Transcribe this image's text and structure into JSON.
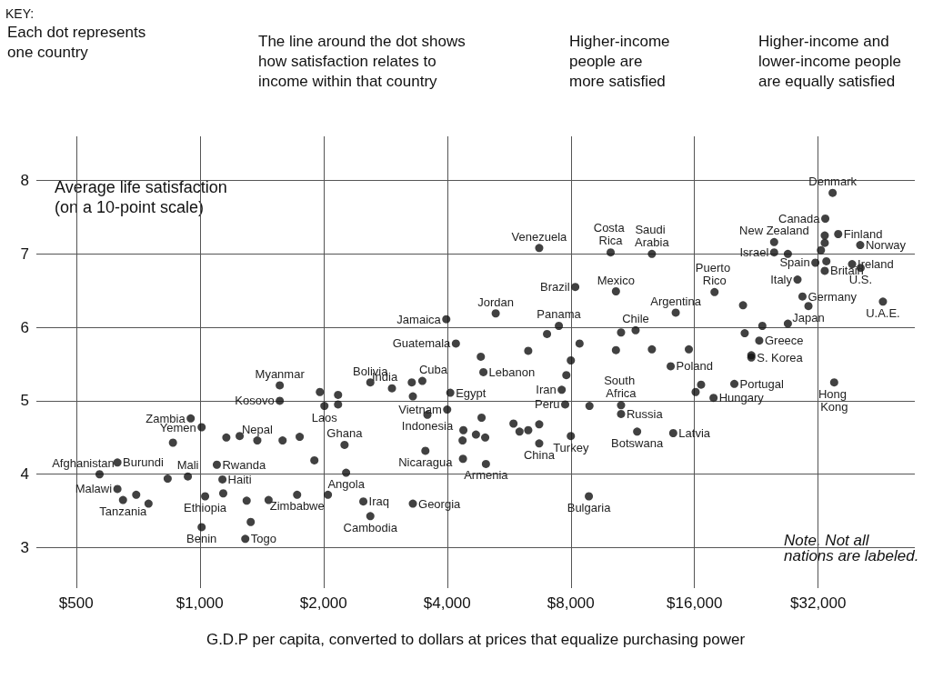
{
  "chart_data": {
    "type": "scatter",
    "ylabel": "Average life satisfaction\n(on a 10-point scale)",
    "xlabel": "G.D.P per capita, converted to dollars at prices that equalize purchasing power",
    "log": "x",
    "xlim": [
      400,
      55000
    ],
    "ylim": [
      2.45,
      8.6
    ],
    "xticks": [
      {
        "value": 500,
        "label": "$500"
      },
      {
        "value": 1000,
        "label": "$1,000"
      },
      {
        "value": 2000,
        "label": "$2,000"
      },
      {
        "value": 4000,
        "label": "$4,000"
      },
      {
        "value": 8000,
        "label": "$8,000"
      },
      {
        "value": 16000,
        "label": "$16,000"
      },
      {
        "value": 32000,
        "label": "$32,000"
      }
    ],
    "yticks": [
      3,
      4,
      5,
      6,
      7,
      8
    ],
    "grid": true,
    "marker": "circle",
    "series": [
      {
        "color": "#111111",
        "x": [
          570,
          630,
          860,
          950,
          1010,
          835,
          935,
          630,
          650,
          700,
          750,
          1030,
          1010,
          1140,
          1135,
          1100,
          1290,
          1330,
          1300,
          1470,
          1725,
          2050,
          1160,
          1250,
          1380,
          1590,
          1750,
          1565,
          1565,
          1900,
          1960,
          2010,
          2170,
          2170,
          2600,
          2935,
          3280,
          3480,
          3300,
          3580,
          4000,
          4070,
          4200,
          3980,
          5250,
          7480,
          7000,
          4830,
          6300,
          4900,
          2250,
          2270,
          3540,
          2500,
          2600,
          3300,
          4380,
          4360,
          4700,
          4950,
          4850,
          4370,
          4970,
          5800,
          6000,
          6300,
          6700,
          7750,
          6700,
          8000,
          7600,
          7800,
          8000,
          8880,
          8850,
          8400,
          10300,
          12600,
          15500,
          14000,
          16600,
          16100,
          17800,
          20000,
          22000,
          35000,
          10600,
          10600,
          11600,
          14200,
          6700,
          10000,
          12600,
          8200,
          10300,
          14400,
          11500,
          10600,
          17900,
          21000,
          25000,
          25000,
          27000,
          33300,
          34700,
          35800,
          33200,
          33200,
          32500,
          40500,
          38700,
          40600,
          46000,
          31500,
          33500,
          33200,
          28500,
          29300,
          30300,
          23000,
          21200,
          23400,
          27000,
          22000
        ],
        "values": [
          4.0,
          4.16,
          4.43,
          4.76,
          4.64,
          3.94,
          3.97,
          3.8,
          3.65,
          3.72,
          3.6,
          3.7,
          3.28,
          3.74,
          3.93,
          4.13,
          3.12,
          3.35,
          3.64,
          3.65,
          3.72,
          3.72,
          4.5,
          4.52,
          4.46,
          4.46,
          4.51,
          5.21,
          5.0,
          4.19,
          5.12,
          4.93,
          5.08,
          4.95,
          5.25,
          5.17,
          5.25,
          5.27,
          5.06,
          4.81,
          4.88,
          5.11,
          5.78,
          6.11,
          6.19,
          6.02,
          5.91,
          5.6,
          5.68,
          5.39,
          4.4,
          4.02,
          4.32,
          3.63,
          3.43,
          3.6,
          4.6,
          4.46,
          4.54,
          4.5,
          4.77,
          4.21,
          4.14,
          4.69,
          4.58,
          4.6,
          4.68,
          4.95,
          4.42,
          4.52,
          5.15,
          5.35,
          5.55,
          4.93,
          3.7,
          5.78,
          5.69,
          5.7,
          5.7,
          5.47,
          5.22,
          5.12,
          5.04,
          5.23,
          5.59,
          5.25,
          4.94,
          4.82,
          4.58,
          4.56,
          7.08,
          7.02,
          7.0,
          6.55,
          6.49,
          6.2,
          5.96,
          5.93,
          6.48,
          6.3,
          7.16,
          7.02,
          7.0,
          7.48,
          7.83,
          7.27,
          7.25,
          7.15,
          7.05,
          7.12,
          6.86,
          6.81,
          6.35,
          6.88,
          6.9,
          6.77,
          6.65,
          6.42,
          6.29,
          5.82,
          5.92,
          6.02,
          6.05,
          5.62
        ]
      }
    ],
    "annotations": [
      "KEY:",
      "Each dot represents\none country",
      "The line around the dot shows\nhow satisfaction relates to\nincome within that country",
      "Higher-income\npeople are\nmore satisfied",
      "Higher-income and\nlower-income people\nare equally satisfied",
      "Note. Not all\nnations are labeled.",
      {
        "text": "Afghanistan",
        "x": 570,
        "y": 4.0
      },
      {
        "text": "Burundi",
        "x": 630,
        "y": 4.16
      },
      {
        "text": "Zambia",
        "x": 950,
        "y": 4.76
      },
      {
        "text": "Yemen",
        "x": 1010,
        "y": 4.64
      },
      {
        "text": "Mali",
        "x": 935,
        "y": 3.97
      },
      {
        "text": "Malawi",
        "x": 630,
        "y": 3.8
      },
      {
        "text": "Tanzania",
        "x": 650,
        "y": 3.65
      },
      {
        "text": "Ethiopia",
        "x": 1030,
        "y": 3.7
      },
      {
        "text": "Benin",
        "x": 1010,
        "y": 3.28
      },
      {
        "text": "Togo",
        "x": 1290,
        "y": 3.12
      },
      {
        "text": "Rwanda",
        "x": 1100,
        "y": 4.13
      },
      {
        "text": "Haiti",
        "x": 1135,
        "y": 3.93
      },
      {
        "text": "Zimbabwe",
        "x": 1725,
        "y": 3.72
      },
      {
        "text": "Nepal",
        "x": 1380,
        "y": 4.46
      },
      {
        "text": "Myanmar",
        "x": 1565,
        "y": 5.21
      },
      {
        "text": "Kosovo",
        "x": 1565,
        "y": 5.0
      },
      {
        "text": "Laos",
        "x": 2010,
        "y": 4.93
      },
      {
        "text": "Bolivia",
        "x": 2600,
        "y": 5.25
      },
      {
        "text": "India",
        "x": 2935,
        "y": 5.17
      },
      {
        "text": "Cuba",
        "x": 3480,
        "y": 5.27
      },
      {
        "text": "Vietnam",
        "x": 4000,
        "y": 4.88
      },
      {
        "text": "Indonesia",
        "x": 3580,
        "y": 4.81
      },
      {
        "text": "Egypt",
        "x": 4070,
        "y": 5.11
      },
      {
        "text": "Guatemala",
        "x": 4200,
        "y": 5.78
      },
      {
        "text": "Jamaica",
        "x": 3980,
        "y": 6.11
      },
      {
        "text": "Jordan",
        "x": 5250,
        "y": 6.19
      },
      {
        "text": "Panama",
        "x": 7480,
        "y": 6.02
      },
      {
        "text": "Lebanon",
        "x": 4900,
        "y": 5.39
      },
      {
        "text": "Ghana",
        "x": 2250,
        "y": 4.4
      },
      {
        "text": "Angola",
        "x": 2270,
        "y": 4.02
      },
      {
        "text": "Nicaragua",
        "x": 3540,
        "y": 4.32
      },
      {
        "text": "Iraq",
        "x": 2500,
        "y": 3.63
      },
      {
        "text": "Cambodia",
        "x": 2600,
        "y": 3.43
      },
      {
        "text": "Georgia",
        "x": 3300,
        "y": 3.6
      },
      {
        "text": "Armenia",
        "x": 4970,
        "y": 4.14
      },
      {
        "text": "Peru",
        "x": 7750,
        "y": 4.95
      },
      {
        "text": "China",
        "x": 6700,
        "y": 4.42
      },
      {
        "text": "Turkey",
        "x": 8000,
        "y": 4.52
      },
      {
        "text": "Iran",
        "x": 7600,
        "y": 5.15
      },
      {
        "text": "Bulgaria",
        "x": 8850,
        "y": 3.7
      },
      {
        "text": "Poland",
        "x": 14000,
        "y": 5.47
      },
      {
        "text": "Hungary",
        "x": 17800,
        "y": 5.04
      },
      {
        "text": "Portugal",
        "x": 20000,
        "y": 5.23
      },
      {
        "text": "S. Korea",
        "x": 22000,
        "y": 5.59
      },
      {
        "text": "Hong Kong",
        "x": 35000,
        "y": 5.25
      },
      {
        "text": "South Africa",
        "x": 10600,
        "y": 4.94
      },
      {
        "text": "Russia",
        "x": 10600,
        "y": 4.82
      },
      {
        "text": "Botswana",
        "x": 11600,
        "y": 4.58
      },
      {
        "text": "Latvia",
        "x": 14200,
        "y": 4.56
      },
      {
        "text": "Venezuela",
        "x": 6700,
        "y": 7.08
      },
      {
        "text": "Costa Rica",
        "x": 10000,
        "y": 7.02
      },
      {
        "text": "Saudi Arabia",
        "x": 12600,
        "y": 7.0
      },
      {
        "text": "Brazil",
        "x": 8200,
        "y": 6.55
      },
      {
        "text": "Mexico",
        "x": 10300,
        "y": 6.49
      },
      {
        "text": "Argentina",
        "x": 14400,
        "y": 6.2
      },
      {
        "text": "Chile",
        "x": 11500,
        "y": 5.96
      },
      {
        "text": "Puerto Rico",
        "x": 17900,
        "y": 6.48
      },
      {
        "text": "New Zealand",
        "x": 25000,
        "y": 7.16
      },
      {
        "text": "Israel",
        "x": 25000,
        "y": 7.02
      },
      {
        "text": "Canada",
        "x": 33300,
        "y": 7.48
      },
      {
        "text": "Denmark",
        "x": 34700,
        "y": 7.83
      },
      {
        "text": "Finland",
        "x": 35800,
        "y": 7.27
      },
      {
        "text": "Norway",
        "x": 40500,
        "y": 7.12
      },
      {
        "text": "Ireland",
        "x": 38700,
        "y": 6.86
      },
      {
        "text": "U.S.",
        "x": 40600,
        "y": 6.81
      },
      {
        "text": "U.A.E.",
        "x": 46000,
        "y": 6.35
      },
      {
        "text": "Spain",
        "x": 31500,
        "y": 6.88
      },
      {
        "text": "Britain",
        "x": 33200,
        "y": 6.77
      },
      {
        "text": "Italy",
        "x": 28500,
        "y": 6.65
      },
      {
        "text": "Germany",
        "x": 29300,
        "y": 6.42
      },
      {
        "text": "Japan",
        "x": 30300,
        "y": 6.29
      },
      {
        "text": "Greece",
        "x": 23000,
        "y": 5.82
      }
    ]
  }
}
